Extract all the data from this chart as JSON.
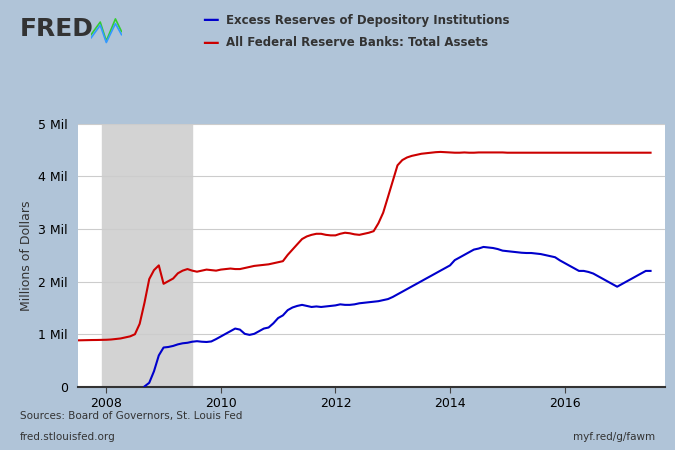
{
  "legend_entries": [
    {
      "label": "Excess Reserves of Depository Institutions",
      "color": "#0000CC"
    },
    {
      "label": "All Federal Reserve Banks: Total Assets",
      "color": "#CC0000"
    }
  ],
  "ylabel": "Millions of Dollars",
  "ylim": [
    0,
    5000000
  ],
  "yticks": [
    0,
    1000000,
    2000000,
    3000000,
    4000000,
    5000000
  ],
  "ytick_labels": [
    "0",
    "1 Mil",
    "2 Mil",
    "3 Mil",
    "4 Mil",
    "5 Mil"
  ],
  "xlim_start": 2007.5,
  "xlim_end": 2017.75,
  "xtick_years": [
    2008,
    2010,
    2012,
    2014,
    2016
  ],
  "recession_shade": [
    2007.917,
    2009.5
  ],
  "background_color": "#b0c4d8",
  "plot_bg_color": "#ffffff",
  "grid_color": "#cccccc",
  "source_text": "Sources: Board of Governors, St. Louis Fed",
  "url_left": "fred.stlouisfed.org",
  "url_right": "myf.red/g/fawm",
  "line_width": 1.5,
  "excess_reserves_x": [
    2008.667,
    2008.75,
    2008.833,
    2008.917,
    2009.0,
    2009.083,
    2009.167,
    2009.25,
    2009.333,
    2009.417,
    2009.5,
    2009.583,
    2009.667,
    2009.75,
    2009.833,
    2009.917,
    2010.0,
    2010.083,
    2010.167,
    2010.25,
    2010.333,
    2010.417,
    2010.5,
    2010.583,
    2010.667,
    2010.75,
    2010.833,
    2010.917,
    2011.0,
    2011.083,
    2011.167,
    2011.25,
    2011.333,
    2011.417,
    2011.5,
    2011.583,
    2011.667,
    2011.75,
    2011.833,
    2011.917,
    2012.0,
    2012.083,
    2012.167,
    2012.25,
    2012.333,
    2012.417,
    2012.5,
    2012.583,
    2012.667,
    2012.75,
    2012.833,
    2012.917,
    2013.0,
    2013.083,
    2013.167,
    2013.25,
    2013.333,
    2013.417,
    2013.5,
    2013.583,
    2013.667,
    2013.75,
    2013.833,
    2013.917,
    2014.0,
    2014.083,
    2014.167,
    2014.25,
    2014.333,
    2014.417,
    2014.5,
    2014.583,
    2014.667,
    2014.75,
    2014.833,
    2014.917,
    2015.0,
    2015.083,
    2015.167,
    2015.25,
    2015.333,
    2015.417,
    2015.5,
    2015.583,
    2015.667,
    2015.75,
    2015.833,
    2015.917,
    2016.0,
    2016.083,
    2016.167,
    2016.25,
    2016.333,
    2016.417,
    2016.5,
    2016.583,
    2016.667,
    2016.75,
    2016.833,
    2016.917,
    2017.0,
    2017.083,
    2017.167,
    2017.25,
    2017.333,
    2017.417,
    2017.5
  ],
  "excess_reserves_y": [
    10000,
    80000,
    300000,
    600000,
    750000,
    760000,
    780000,
    810000,
    830000,
    840000,
    860000,
    870000,
    860000,
    855000,
    865000,
    910000,
    960000,
    1010000,
    1060000,
    1110000,
    1090000,
    1010000,
    990000,
    1010000,
    1060000,
    1110000,
    1130000,
    1210000,
    1310000,
    1360000,
    1460000,
    1510000,
    1540000,
    1560000,
    1540000,
    1520000,
    1530000,
    1520000,
    1530000,
    1540000,
    1550000,
    1570000,
    1560000,
    1560000,
    1570000,
    1590000,
    1600000,
    1610000,
    1620000,
    1630000,
    1650000,
    1670000,
    1710000,
    1760000,
    1810000,
    1860000,
    1910000,
    1960000,
    2010000,
    2060000,
    2110000,
    2160000,
    2210000,
    2260000,
    2310000,
    2410000,
    2460000,
    2510000,
    2560000,
    2610000,
    2630000,
    2660000,
    2650000,
    2640000,
    2620000,
    2590000,
    2580000,
    2570000,
    2560000,
    2550000,
    2545000,
    2545000,
    2535000,
    2525000,
    2505000,
    2485000,
    2465000,
    2405000,
    2355000,
    2305000,
    2255000,
    2205000,
    2205000,
    2185000,
    2155000,
    2105000,
    2055000,
    2005000,
    1955000,
    1905000,
    1955000,
    2005000,
    2055000,
    2105000,
    2155000,
    2205000,
    2205000
  ],
  "total_assets_x": [
    2007.0,
    2007.083,
    2007.167,
    2007.25,
    2007.333,
    2007.417,
    2007.5,
    2007.583,
    2007.667,
    2007.75,
    2007.833,
    2007.917,
    2008.0,
    2008.083,
    2008.167,
    2008.25,
    2008.333,
    2008.417,
    2008.5,
    2008.583,
    2008.667,
    2008.75,
    2008.833,
    2008.917,
    2009.0,
    2009.083,
    2009.167,
    2009.25,
    2009.333,
    2009.417,
    2009.5,
    2009.583,
    2009.667,
    2009.75,
    2009.833,
    2009.917,
    2010.0,
    2010.083,
    2010.167,
    2010.25,
    2010.333,
    2010.417,
    2010.5,
    2010.583,
    2010.667,
    2010.75,
    2010.833,
    2010.917,
    2011.0,
    2011.083,
    2011.167,
    2011.25,
    2011.333,
    2011.417,
    2011.5,
    2011.583,
    2011.667,
    2011.75,
    2011.833,
    2011.917,
    2012.0,
    2012.083,
    2012.167,
    2012.25,
    2012.333,
    2012.417,
    2012.5,
    2012.583,
    2012.667,
    2012.75,
    2012.833,
    2012.917,
    2013.0,
    2013.083,
    2013.167,
    2013.25,
    2013.333,
    2013.417,
    2013.5,
    2013.583,
    2013.667,
    2013.75,
    2013.833,
    2013.917,
    2014.0,
    2014.083,
    2014.167,
    2014.25,
    2014.333,
    2014.417,
    2014.5,
    2014.583,
    2014.667,
    2014.75,
    2014.833,
    2014.917,
    2015.0,
    2015.083,
    2015.167,
    2015.25,
    2015.333,
    2015.417,
    2015.5,
    2015.583,
    2015.667,
    2015.75,
    2015.833,
    2015.917,
    2016.0,
    2016.083,
    2016.167,
    2016.25,
    2016.333,
    2016.417,
    2016.5,
    2016.583,
    2016.667,
    2016.75,
    2016.833,
    2016.917,
    2017.0,
    2017.083,
    2017.167,
    2017.25,
    2017.333,
    2017.417,
    2017.5
  ],
  "total_assets_y": [
    870000,
    875000,
    878000,
    880000,
    882000,
    884000,
    886000,
    888000,
    890000,
    892000,
    893000,
    895000,
    897000,
    902000,
    912000,
    922000,
    942000,
    962000,
    1002000,
    1200000,
    1600000,
    2050000,
    2220000,
    2310000,
    1960000,
    2010000,
    2060000,
    2160000,
    2210000,
    2240000,
    2210000,
    2190000,
    2210000,
    2230000,
    2220000,
    2210000,
    2230000,
    2240000,
    2250000,
    2240000,
    2240000,
    2260000,
    2280000,
    2300000,
    2310000,
    2320000,
    2330000,
    2350000,
    2370000,
    2390000,
    2510000,
    2610000,
    2710000,
    2810000,
    2860000,
    2890000,
    2910000,
    2910000,
    2890000,
    2880000,
    2880000,
    2910000,
    2930000,
    2920000,
    2900000,
    2890000,
    2910000,
    2930000,
    2960000,
    3110000,
    3310000,
    3610000,
    3910000,
    4210000,
    4310000,
    4360000,
    4390000,
    4410000,
    4430000,
    4440000,
    4450000,
    4460000,
    4465000,
    4460000,
    4455000,
    4450000,
    4450000,
    4455000,
    4450000,
    4450000,
    4455000,
    4455000,
    4455000,
    4455000,
    4455000,
    4455000,
    4450000,
    4450000,
    4450000,
    4450000,
    4450000,
    4450000,
    4450000,
    4450000,
    4450000,
    4450000,
    4450000,
    4450000,
    4450000,
    4450000,
    4450000,
    4450000,
    4450000,
    4450000,
    4450000,
    4450000,
    4450000,
    4450000,
    4450000,
    4450000,
    4450000,
    4450000,
    4450000,
    4450000,
    4450000,
    4450000,
    4450000
  ]
}
